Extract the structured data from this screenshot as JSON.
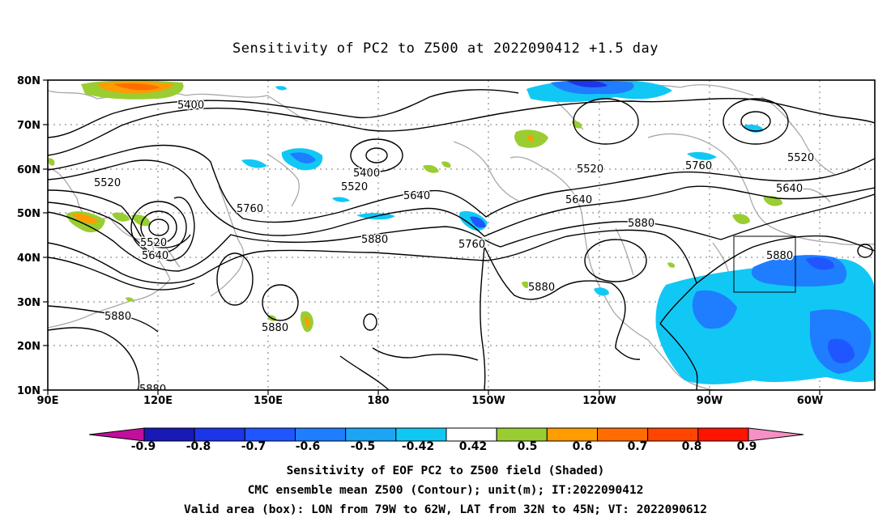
{
  "title": "Sensitivity of PC2 to Z500 at 2022090412 +1.5 day",
  "map": {
    "lat_labels": [
      "80N",
      "70N",
      "60N",
      "50N",
      "40N",
      "30N",
      "20N",
      "10N"
    ],
    "lon_labels": [
      "90E",
      "120E",
      "150E",
      "180",
      "150W",
      "120W",
      "90W",
      "60W"
    ],
    "contour_labels": [
      {
        "text": "5400",
        "near": "NW Pacific, 73N 127E"
      },
      {
        "text": "5520",
        "near": "East Asia, 55N 108E"
      },
      {
        "text": "5760",
        "near": "Japan Sea, 50N 144E"
      },
      {
        "text": "5520",
        "near": "cutoff low, 46N 120E"
      },
      {
        "text": "5640",
        "near": "cutoff low, 43N 120E"
      },
      {
        "text": "5880",
        "near": "30N 111E"
      },
      {
        "text": "5880",
        "near": "South of Japan, 24N 160E"
      },
      {
        "text": "5880",
        "near": "10N 120E"
      },
      {
        "text": "5400",
        "near": "61N 180"
      },
      {
        "text": "5520",
        "near": "56N 176E"
      },
      {
        "text": "5640",
        "near": "53N 168W"
      },
      {
        "text": "5880",
        "near": "42N 177E"
      },
      {
        "text": "5760",
        "near": "39N 152W"
      },
      {
        "text": "5880",
        "near": "33N 140W"
      },
      {
        "text": "5520",
        "near": "61N 122W"
      },
      {
        "text": "5640",
        "near": "52N 121W"
      },
      {
        "text": "5880",
        "near": "46N 102W"
      },
      {
        "text": "5760",
        "near": "62N 87W"
      },
      {
        "text": "5880",
        "near": "40N 73W"
      },
      {
        "text": "5640",
        "near": "55N 66W"
      },
      {
        "text": "5520",
        "near": "63N 64W"
      }
    ],
    "valid_box": {
      "lon_from": "79W",
      "lon_to": "62W",
      "lat_from": "32N",
      "lat_to": "45N"
    }
  },
  "colorbar": {
    "labels": [
      "-0.9",
      "-0.8",
      "-0.7",
      "-0.6",
      "-0.5",
      "-0.42",
      "0.42",
      "0.5",
      "0.6",
      "0.7",
      "0.8",
      "0.9"
    ],
    "colors": [
      "#c00f9a",
      "#1919b8",
      "#1d35e9",
      "#1f56ff",
      "#1f7dff",
      "#1ca5f5",
      "#11c8f5",
      "#ffffff",
      "#9acd32",
      "#ff9c00",
      "#ff6d00",
      "#ff4500",
      "#ff1400",
      "#f790c4"
    ]
  },
  "captions": {
    "line1": "Sensitivity of EOF PC2 to Z500 field (Shaded)",
    "line2": "CMC ensemble mean Z500 (Contour); unit(m); IT:2022090412",
    "line3": "Valid area (box): LON from 79W to 62W, LAT from 32N to 45N; VT: 2022090612"
  }
}
